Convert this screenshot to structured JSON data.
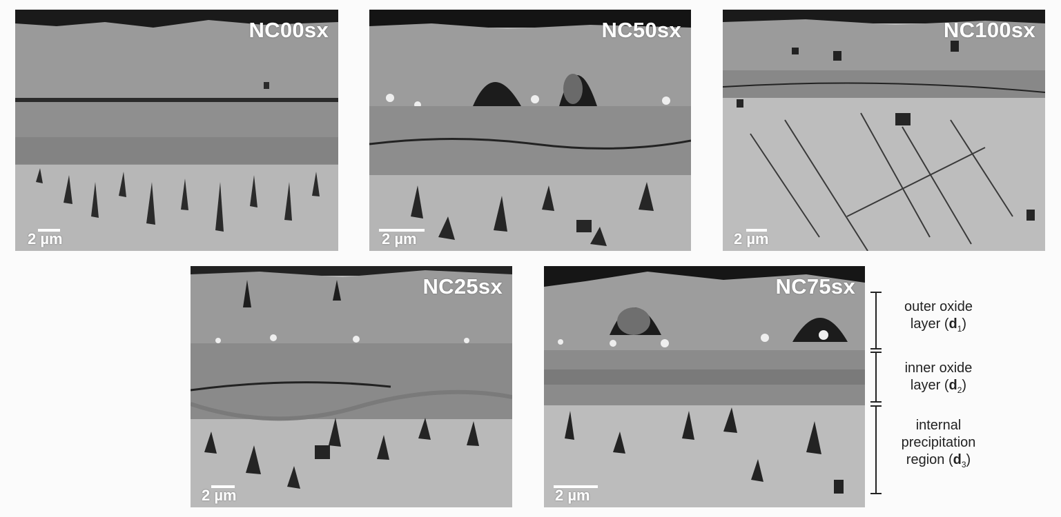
{
  "panels": [
    {
      "id": "nc00",
      "label": "NC00sx",
      "scale": "2 µm"
    },
    {
      "id": "nc50",
      "label": "NC50sx",
      "scale": "2 µm"
    },
    {
      "id": "nc100",
      "label": "NC100sx",
      "scale": "2 µm"
    },
    {
      "id": "nc25",
      "label": "NC25sx",
      "scale": "2 µm"
    },
    {
      "id": "nc75",
      "label": "NC75sx",
      "scale": "2 µm"
    }
  ],
  "regions": {
    "outer": {
      "line1": "outer oxide",
      "line2": "layer (",
      "symbol": "d",
      "sub": "1",
      "close": ")"
    },
    "inner": {
      "line1": "inner oxide",
      "line2": "layer (",
      "symbol": "d",
      "sub": "2",
      "close": ")"
    },
    "internal": {
      "line1": "internal",
      "line2": "precipitation",
      "line3": "region (",
      "symbol": "d",
      "sub": "3",
      "close": ")"
    }
  }
}
